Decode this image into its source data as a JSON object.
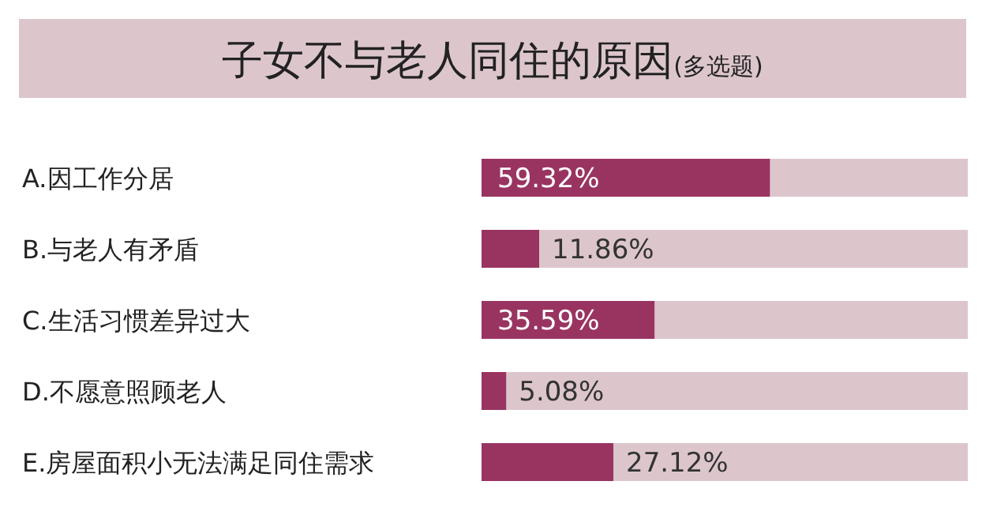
{
  "chart_data": {
    "type": "bar",
    "orientation": "horizontal",
    "title": "子女不与老人同住的原因",
    "subtitle": "(多选题)",
    "categories": [
      "A.因工作分居",
      "B.与老人有矛盾",
      "C.生活习惯差异过大",
      "D.不愿意照顾老人",
      "E.房屋面积小无法满足同住需求"
    ],
    "values": [
      59.32,
      11.86,
      35.59,
      5.08,
      27.12
    ],
    "value_labels": [
      "59.32%",
      "11.86%",
      "35.59%",
      "5.08%",
      "27.12%"
    ],
    "color": "#993461",
    "xlim": [
      0,
      100
    ]
  }
}
